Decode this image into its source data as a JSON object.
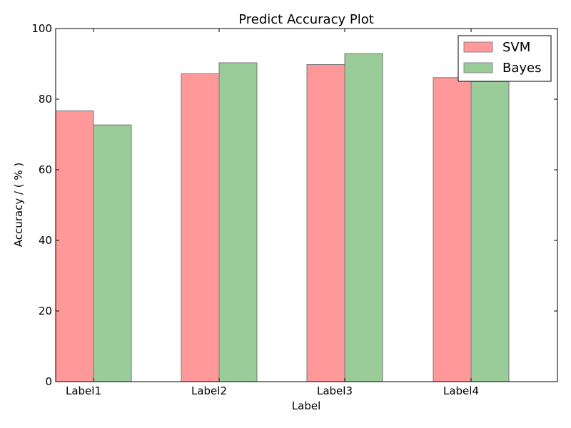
{
  "chart_data": {
    "type": "bar",
    "title": "Predict Accuracy Plot",
    "xlabel": "Label",
    "ylabel": "Accuracy / ( % )",
    "categories": [
      "Label1",
      "Label2",
      "Label3",
      "Label4"
    ],
    "series": [
      {
        "name": "SVM",
        "values": [
          76.7,
          87.2,
          89.8,
          86.1
        ],
        "color": "#ff9999"
      },
      {
        "name": "Bayes",
        "values": [
          72.7,
          90.3,
          92.9,
          85.0
        ],
        "color": "#99cc99"
      }
    ],
    "ylim": [
      0,
      100
    ],
    "yticks": [
      "0",
      "20",
      "40",
      "60",
      "80",
      "100"
    ],
    "grid": false,
    "legend_position": "top-right"
  }
}
